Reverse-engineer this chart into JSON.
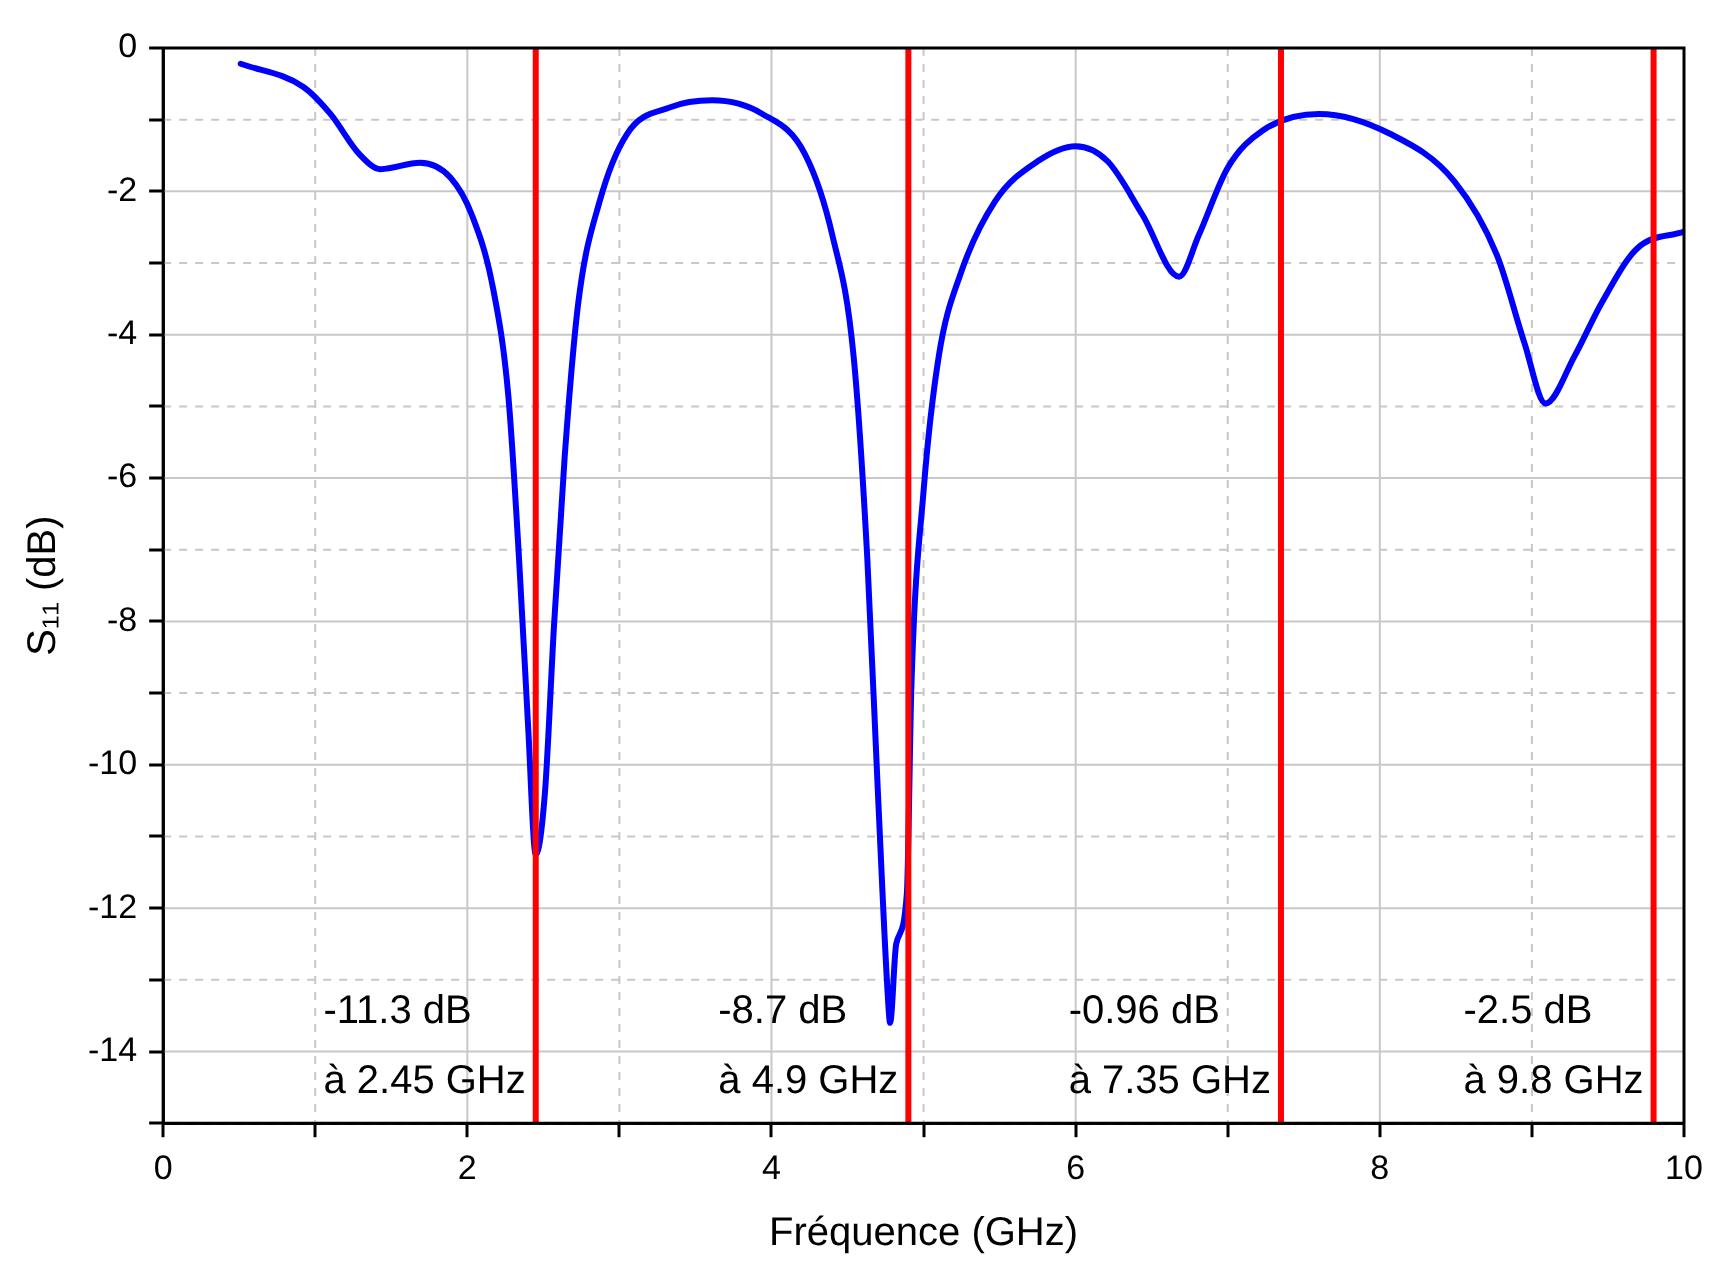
{
  "chart_data": {
    "type": "line",
    "xlabel": "Fréquence (GHz)",
    "ylabel": "S₁₁ (dB)",
    "xlim": [
      0,
      10
    ],
    "xticks": [
      0,
      {
        "value": 1,
        "label": null
      },
      2,
      {
        "value": 3,
        "label": null
      },
      4,
      {
        "value": 5,
        "label": null
      },
      6,
      {
        "value": 7,
        "label": null
      },
      8,
      {
        "value": 9,
        "label": null
      },
      10
    ],
    "ylim": [
      -15,
      0
    ],
    "yticks": [
      {
        "value": -15,
        "label": null
      },
      -14,
      {
        "value": -13,
        "label": null
      },
      -12,
      {
        "value": -11,
        "label": null
      },
      -10,
      {
        "value": -9,
        "label": null
      },
      -8,
      {
        "value": -7,
        "label": null
      },
      -6,
      {
        "value": -5,
        "label": null
      },
      -4,
      {
        "value": -3,
        "label": null
      },
      -2,
      {
        "value": -1,
        "label": null
      },
      0
    ],
    "grid": true,
    "legend": false,
    "marker": "none",
    "line_style": "solid",
    "series": [
      {
        "color": "#0000ff",
        "x": [
          0.51,
          0.92,
          1.1,
          1.29,
          1.43,
          1.69,
          1.89,
          2.03,
          2.17,
          2.27,
          2.34,
          2.4,
          2.45,
          2.51,
          2.57,
          2.64,
          2.73,
          2.87,
          3.05,
          3.33,
          3.61,
          3.94,
          4.22,
          4.4,
          4.54,
          4.63,
          4.7,
          4.77,
          4.78,
          4.82,
          4.89,
          4.92,
          5.0,
          5.1,
          5.24,
          5.47,
          5.75,
          6.0,
          6.21,
          6.44,
          6.68,
          6.81,
          7.0,
          7.23,
          7.6,
          8.07,
          8.49,
          8.77,
          8.95,
          9.09,
          9.28,
          9.46,
          9.69,
          10.0
        ],
        "values": [
          -0.22,
          -0.54,
          -0.92,
          -1.48,
          -1.69,
          -1.6,
          -1.81,
          -2.33,
          -3.36,
          -4.86,
          -7.12,
          -9.47,
          -11.25,
          -10.4,
          -8.06,
          -5.71,
          -3.55,
          -2.14,
          -1.2,
          -0.83,
          -0.73,
          -0.92,
          -1.48,
          -2.61,
          -4.3,
          -7.12,
          -10.4,
          -13.4,
          -13.6,
          -12.5,
          -11.8,
          -8.9,
          -6.18,
          -4.3,
          -3.17,
          -2.14,
          -1.58,
          -1.37,
          -1.58,
          -2.33,
          -3.19,
          -2.61,
          -1.67,
          -1.15,
          -0.92,
          -1.2,
          -1.86,
          -2.89,
          -4.11,
          -4.96,
          -4.3,
          -3.55,
          -2.8,
          -2.56
        ]
      }
    ],
    "ref_lines": [
      {
        "axis": "x",
        "value": 2.45,
        "color": "#ff0000"
      },
      {
        "axis": "x",
        "value": 4.9,
        "color": "#ff0000"
      },
      {
        "axis": "x",
        "value": 7.35,
        "color": "#ff0000"
      },
      {
        "axis": "x",
        "value": 9.8,
        "color": "#ff0000"
      }
    ],
    "annotations": [
      "-11.3 dB\nà 2.45 GHz",
      "-8.7 dB\nà 4.9 GHz",
      "-0.96 dB\nà 7.35 GHz",
      "-2.5 dB\nà 9.8 GHz"
    ]
  }
}
